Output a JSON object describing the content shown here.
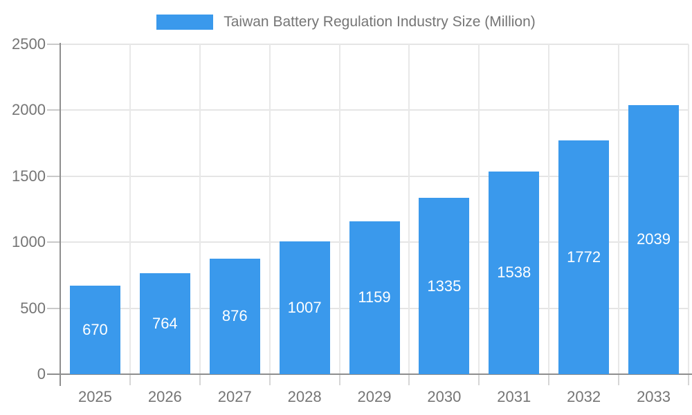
{
  "chart_data": {
    "type": "bar",
    "title": "Taiwan Battery Regulation Industry Size (Million)",
    "categories": [
      "2025",
      "2026",
      "2027",
      "2028",
      "2029",
      "2030",
      "2031",
      "2032",
      "2033"
    ],
    "values": [
      670,
      764,
      876,
      1007,
      1159,
      1335,
      1538,
      1772,
      2039
    ],
    "series_name": "Taiwan Battery Regulation Industry Size (Million)",
    "xlabel": "",
    "ylabel": "",
    "ylim": [
      0,
      2500
    ],
    "ytick_step": 500,
    "ytick_labels": [
      "0",
      "500",
      "1000",
      "1500",
      "2000",
      "2500"
    ],
    "legend_position": "top-center",
    "grid": "on",
    "colors": {
      "bar": "#3a99ec",
      "value_label": "#ffffff",
      "axis_text": "#757575",
      "gridline": "#e5e5e5",
      "axis_line": "#8e8e8e",
      "background": "#ffffff"
    }
  }
}
